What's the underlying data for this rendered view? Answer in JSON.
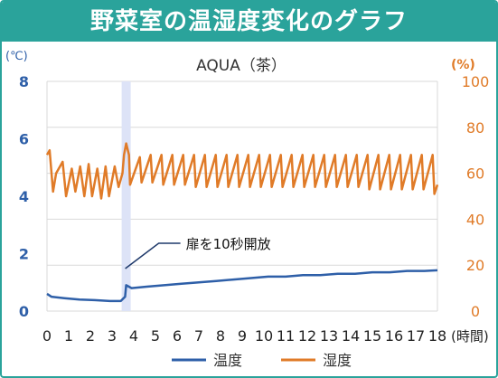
{
  "banner": {
    "title": "野菜室の温湿度変化のグラフ"
  },
  "chart_data": {
    "type": "line",
    "title": "AQUA（茶）",
    "x_unit": "(時間)",
    "x_ticks": [
      "0",
      "1",
      "2",
      "3",
      "4",
      "5",
      "6",
      "7",
      "8",
      "9",
      "10",
      "11",
      "12",
      "13",
      "14",
      "15",
      "16",
      "17",
      "18"
    ],
    "xlim": [
      0,
      18
    ],
    "y_left": {
      "unit": "(℃)",
      "ticks": [
        "0",
        "2",
        "4",
        "6",
        "8"
      ],
      "lim": [
        0,
        8
      ],
      "color": "#2e5fa8"
    },
    "y_right": {
      "unit": "(%)",
      "ticks": [
        "0",
        "20",
        "40",
        "60",
        "80",
        "100"
      ],
      "lim": [
        0,
        100
      ],
      "color": "#e07b28"
    },
    "annotation": {
      "text": "扉を10秒開放",
      "x": 3.65
    },
    "legend": [
      "温度",
      "湿度"
    ],
    "series": [
      {
        "name": "温度",
        "axis": "left",
        "color": "#2e5fa8",
        "x": [
          0,
          0.2,
          0.8,
          1.5,
          2.2,
          2.9,
          3.4,
          3.6,
          3.65,
          3.9,
          4.6,
          5.4,
          6.2,
          7.0,
          7.8,
          8.6,
          9.4,
          10.2,
          11.0,
          11.8,
          12.6,
          13.4,
          14.2,
          15.0,
          15.8,
          16.6,
          17.4,
          18.0
        ],
        "values": [
          0.6,
          0.5,
          0.45,
          0.4,
          0.38,
          0.35,
          0.35,
          0.5,
          0.9,
          0.8,
          0.85,
          0.9,
          0.95,
          1.0,
          1.05,
          1.1,
          1.15,
          1.2,
          1.2,
          1.25,
          1.25,
          1.3,
          1.3,
          1.35,
          1.35,
          1.4,
          1.4,
          1.42
        ]
      },
      {
        "name": "湿度",
        "axis": "right",
        "color": "#e07b28",
        "x": [
          0,
          0.12,
          0.28,
          0.42,
          0.72,
          0.88,
          1.14,
          1.31,
          1.53,
          1.72,
          1.92,
          2.08,
          2.32,
          2.5,
          2.7,
          2.86,
          3.12,
          3.3,
          3.48,
          3.55,
          3.65,
          3.78,
          3.83,
          4.28,
          4.36,
          4.78,
          4.86,
          5.28,
          5.36,
          5.78,
          5.86,
          6.28,
          6.36,
          6.78,
          6.86,
          7.28,
          7.36,
          7.78,
          7.86,
          8.28,
          8.36,
          8.78,
          8.86,
          9.28,
          9.36,
          9.78,
          9.86,
          10.28,
          10.36,
          10.78,
          10.86,
          11.28,
          11.36,
          11.78,
          11.86,
          12.28,
          12.36,
          12.78,
          12.86,
          13.28,
          13.36,
          13.78,
          13.86,
          14.28,
          14.36,
          14.78,
          14.86,
          15.28,
          15.36,
          15.78,
          15.86,
          16.28,
          16.36,
          16.78,
          16.86,
          17.28,
          17.36,
          17.78,
          17.86,
          18.0
        ],
        "values": [
          68,
          70,
          52,
          60,
          65,
          50,
          62,
          52,
          63,
          50,
          64,
          50,
          62,
          49,
          63,
          50,
          63,
          54,
          60,
          68,
          73,
          68,
          55,
          67,
          56,
          68,
          56,
          68,
          55,
          68,
          55,
          68,
          55,
          68,
          54,
          68,
          54,
          68,
          54,
          68,
          54,
          68,
          54,
          68,
          54,
          68,
          54,
          68,
          54,
          68,
          54,
          68,
          54,
          68,
          54,
          68,
          54,
          68,
          54,
          68,
          54,
          68,
          54,
          68,
          54,
          68,
          53,
          68,
          53,
          68,
          53,
          68,
          53,
          68,
          53,
          68,
          53,
          68,
          51,
          55
        ]
      }
    ]
  }
}
